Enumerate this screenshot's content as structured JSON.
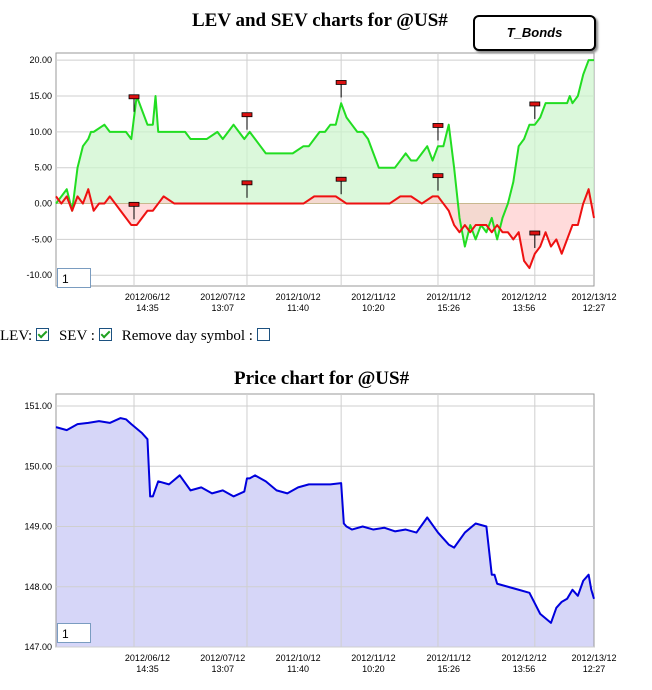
{
  "lev_sev_title": "LEV and SEV charts for @US#",
  "price_title": "Price chart for @US#",
  "tooltip_label": "T_Bonds",
  "controls": {
    "lev_label": "LEV:",
    "sev_label": "SEV :",
    "remove_label": "Remove day symbol :",
    "lev_checked": true,
    "sev_checked": true,
    "remove_checked": false
  },
  "zoom_value_1": "1",
  "zoom_value_2": "1",
  "colors": {
    "lev": "#22dd22",
    "lev_fill": "#ccf5cc",
    "sev": "#ee1111",
    "sev_fill": "#ffcccc",
    "overlap_fill": "#c8b88f",
    "price": "#0000dd",
    "price_fill": "#d6d6f8",
    "grid": "#cfcfcf"
  },
  "chart_data": [
    {
      "type": "line",
      "title": "LEV and SEV charts for @US#",
      "ylim": [
        -11.5,
        21
      ],
      "yticks": [
        20,
        15,
        10,
        5,
        0,
        -5,
        -10
      ],
      "ytick_labels": [
        "20.00",
        "15.00",
        "10.00",
        "5.00",
        "0.00",
        "-5.00",
        "-10.00"
      ],
      "xlim": [
        0,
        100
      ],
      "xtick_positions": [
        17,
        31,
        45,
        59,
        73,
        87,
        100
      ],
      "xtick_labels": [
        [
          "2012/06/12",
          "14:35"
        ],
        [
          "2012/07/12",
          "13:07"
        ],
        [
          "2012/10/12",
          "11:40"
        ],
        [
          "2012/11/12",
          "10:20"
        ],
        [
          "2012/11/12",
          "15:26"
        ],
        [
          "2012/12/12",
          "13:56"
        ],
        [
          "2012/13/12",
          "12:27"
        ]
      ],
      "day_markers": [
        14.5,
        35.5,
        53,
        71,
        89
      ],
      "series": [
        {
          "name": "LEV",
          "x": [
            0,
            2,
            3,
            4,
            5,
            6,
            6.5,
            7,
            9,
            10,
            12,
            13,
            14,
            15,
            16,
            17,
            18,
            18.5,
            19,
            20,
            22,
            23,
            24,
            25,
            26,
            27,
            28,
            30,
            31,
            32,
            33,
            34,
            35,
            36,
            37,
            38,
            39,
            40,
            42,
            44,
            46,
            47,
            48,
            49,
            50,
            51,
            52,
            53,
            54,
            55,
            56,
            57,
            58,
            59,
            60,
            61,
            62,
            63,
            64,
            65,
            66,
            67,
            68,
            69,
            70,
            71,
            72,
            73,
            74,
            75,
            76,
            77,
            78,
            79,
            80,
            81,
            82,
            83,
            84,
            85,
            86,
            87,
            88,
            89,
            90,
            91,
            92,
            93,
            94,
            95,
            95.5,
            96,
            97,
            98,
            99,
            100
          ],
          "y": [
            0,
            2,
            -1,
            5,
            8,
            9,
            10,
            10,
            11,
            10,
            10,
            10,
            9,
            15,
            13,
            11,
            11,
            15,
            10,
            10,
            10,
            10,
            10,
            9,
            9,
            9,
            9,
            10,
            9,
            10,
            11,
            10,
            9,
            10,
            9,
            8,
            7,
            7,
            7,
            7,
            8,
            8,
            9,
            10,
            10,
            11,
            11,
            14,
            12,
            11,
            10,
            10,
            9,
            7,
            5,
            5,
            5,
            5,
            6,
            7,
            6,
            6,
            7,
            8,
            6,
            8,
            8,
            11,
            5,
            -2,
            -6,
            -3,
            -5,
            -3,
            -4,
            -2,
            -5,
            -2,
            0,
            3,
            8,
            9,
            11,
            11,
            12,
            14,
            14,
            14,
            14,
            14,
            15,
            14,
            15,
            18,
            20,
            20
          ]
        },
        {
          "name": "SEV",
          "x": [
            0,
            1,
            2,
            3,
            4,
            5,
            6,
            7,
            8,
            9,
            10,
            11,
            12,
            13,
            14,
            15,
            16,
            17,
            18,
            19,
            20,
            22,
            24,
            26,
            28,
            30,
            32,
            34,
            36,
            38,
            40,
            42,
            44,
            46,
            48,
            50,
            52,
            54,
            56,
            58,
            60,
            62,
            64,
            66,
            68,
            70,
            71,
            72,
            73,
            74,
            75,
            76,
            77,
            78,
            79,
            80,
            81,
            82,
            83,
            84,
            85,
            86,
            87,
            88,
            89,
            90,
            91,
            92,
            93,
            94,
            95,
            96,
            97,
            98,
            99,
            100
          ],
          "y": [
            1,
            0,
            1,
            -1,
            1,
            0,
            2,
            -1,
            0,
            0,
            1,
            0,
            -1,
            -2,
            -3,
            -3,
            -2,
            -1,
            -1,
            0,
            1,
            0,
            0,
            0,
            0,
            0,
            0,
            0,
            0,
            0,
            0,
            0,
            0,
            0,
            1,
            1,
            1,
            0,
            0,
            0,
            0,
            0,
            1,
            1,
            0,
            1,
            1,
            0,
            -1,
            -3,
            -4,
            -3,
            -4,
            -3,
            -3,
            -3,
            -4,
            -3,
            -4,
            -4,
            -5,
            -4,
            -8,
            -9,
            -7,
            -6,
            -4,
            -6,
            -5,
            -7,
            -5,
            -3,
            -3,
            0,
            2,
            -2
          ]
        }
      ]
    },
    {
      "type": "area",
      "title": "Price chart for @US#",
      "ylim": [
        147,
        151.2
      ],
      "yticks": [
        151,
        150,
        149,
        148,
        147
      ],
      "ytick_labels": [
        "151.00",
        "150.00",
        "149.00",
        "148.00",
        "147.00"
      ],
      "xlim": [
        0,
        100
      ],
      "xtick_positions": [
        17,
        31,
        45,
        59,
        73,
        87,
        100
      ],
      "xtick_labels": [
        [
          "2012/06/12",
          "14:35"
        ],
        [
          "2012/07/12",
          "13:07"
        ],
        [
          "2012/10/12",
          "11:40"
        ],
        [
          "2012/11/12",
          "10:20"
        ],
        [
          "2012/11/12",
          "15:26"
        ],
        [
          "2012/12/12",
          "13:56"
        ],
        [
          "2012/13/12",
          "12:27"
        ]
      ],
      "day_markers": [
        14.5,
        35.5,
        53,
        71,
        89
      ],
      "series": [
        {
          "name": "Price",
          "x": [
            0,
            2,
            4,
            6,
            8,
            10,
            12,
            13,
            14,
            16,
            17,
            17.5,
            18,
            19,
            21,
            23,
            25,
            27,
            29,
            31,
            33,
            35,
            35.5,
            36,
            37,
            39,
            41,
            43,
            45,
            47,
            49,
            51,
            53,
            53.5,
            54,
            55,
            57,
            59,
            61,
            63,
            65,
            67,
            69,
            71,
            72,
            73,
            74,
            76,
            78,
            80,
            81,
            81.5,
            82,
            84,
            86,
            88,
            90,
            92,
            93,
            94,
            95,
            96,
            97,
            98,
            99,
            99.5,
            100
          ],
          "y": [
            150.65,
            150.6,
            150.7,
            150.72,
            150.75,
            150.72,
            150.8,
            150.78,
            150.7,
            150.55,
            150.45,
            149.5,
            149.5,
            149.75,
            149.7,
            149.85,
            149.6,
            149.65,
            149.55,
            149.6,
            149.5,
            149.58,
            149.8,
            149.8,
            149.85,
            149.75,
            149.6,
            149.55,
            149.65,
            149.7,
            149.7,
            149.7,
            149.72,
            149.05,
            149,
            148.95,
            149,
            148.95,
            148.98,
            148.92,
            148.95,
            148.9,
            149.15,
            148.9,
            148.8,
            148.7,
            148.65,
            148.9,
            149.05,
            149,
            148.2,
            148.2,
            148.05,
            148.0,
            147.95,
            147.9,
            147.55,
            147.4,
            147.65,
            147.75,
            147.8,
            147.95,
            147.85,
            148.1,
            148.2,
            147.95,
            147.8
          ]
        }
      ]
    }
  ]
}
